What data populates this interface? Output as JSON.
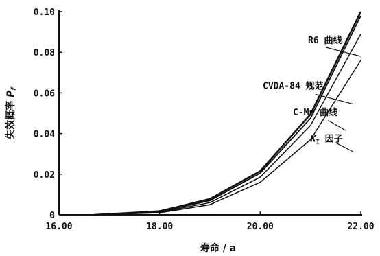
{
  "chart_data": {
    "type": "line",
    "xlabel": "寿命 / a",
    "ylabel_main": "失效概率 ",
    "ylabel_symbol": "P",
    "ylabel_sub": "f",
    "xlim": [
      16,
      22
    ],
    "ylim": [
      0,
      0.1
    ],
    "xticks": [
      16,
      18,
      20,
      22
    ],
    "xtick_labels": [
      "16.00",
      "18.00",
      "20.00",
      "22.00"
    ],
    "yticks": [
      0,
      0.02,
      0.04,
      0.06,
      0.08,
      0.1
    ],
    "ytick_labels": [
      "0",
      "0.02",
      "0.04",
      "0.06",
      "0.08",
      "0.10"
    ],
    "x": [
      16.7,
      18.0,
      19.0,
      20.0,
      21.0,
      22.0
    ],
    "series": [
      {
        "name": "R6 曲线",
        "values": [
          0.0,
          0.0018,
          0.0078,
          0.0215,
          0.0495,
          0.1
        ]
      },
      {
        "name": "CVDA-84 规范",
        "values": [
          0.0,
          0.0015,
          0.007,
          0.0205,
          0.0475,
          0.098
        ]
      },
      {
        "name": "C-Mn 曲线",
        "values": [
          0.0,
          0.0012,
          0.006,
          0.0185,
          0.044,
          0.089
        ]
      },
      {
        "name": "K",
        "name_sub": "I",
        "name_suffix": " 因子",
        "values": [
          0.0,
          0.001,
          0.005,
          0.016,
          0.037,
          0.076
        ]
      }
    ],
    "annotations": [
      {
        "series": 0,
        "text": "R6 曲线",
        "label_x": 20.95,
        "label_y": 0.0845,
        "line_start": [
          21.3,
          0.0825
        ],
        "line_end": [
          22.0,
          0.078
        ]
      },
      {
        "series": 1,
        "text": "CVDA-84 规范",
        "label_x": 20.05,
        "label_y": 0.062,
        "line_start": [
          21.1,
          0.0593
        ],
        "line_end": [
          21.85,
          0.0545
        ]
      },
      {
        "series": 2,
        "text": "C-Mn 曲线",
        "label_x": 20.65,
        "label_y": 0.049,
        "line_start": [
          21.35,
          0.0465
        ],
        "line_end": [
          21.7,
          0.0415
        ]
      },
      {
        "series": 3,
        "text": "K",
        "text_sub": "I",
        "text_suffix": " 因子",
        "label_x": 21.0,
        "label_y": 0.036,
        "line_start": [
          21.5,
          0.0355
        ],
        "line_end": [
          21.85,
          0.031
        ]
      }
    ],
    "grid": false,
    "legend": "none"
  }
}
